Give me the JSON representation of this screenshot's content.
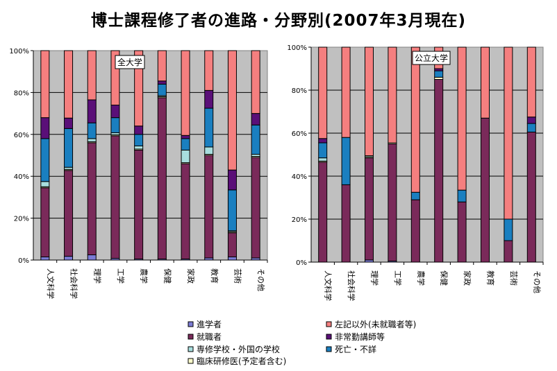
{
  "title": "博士課程修了者の進路・分野別(2007年3月現在)",
  "legend": [
    {
      "name": "進学者",
      "color": "#7b7bd4"
    },
    {
      "name": "左記以外(未就職者等)",
      "color": "#f57f7f"
    },
    {
      "name": "就職者",
      "color": "#7a2a5a"
    },
    {
      "name": "非常勤講師等",
      "color": "#5a0f78"
    },
    {
      "name": "専修学校・外国の学校",
      "color": "#a8dede"
    },
    {
      "name": "死亡・不詳",
      "color": "#1a7fc0"
    },
    {
      "name": "臨床研修医(予定者含む)",
      "color": "#ffffcc"
    }
  ],
  "chart_data": [
    {
      "type": "bar",
      "stacked": true,
      "title": "全大学",
      "categories": [
        "人文科学",
        "社会科学",
        "理学",
        "工学",
        "農学",
        "保健",
        "家政",
        "教育",
        "芸術",
        "その他"
      ],
      "ylim": [
        0,
        100
      ],
      "yticks": [
        "0%",
        "20%",
        "40%",
        "60%",
        "80%",
        "100%"
      ],
      "series": [
        {
          "name": "進学者",
          "values": [
            1.5,
            1.8,
            2.5,
            0.8,
            0.5,
            0.5,
            0.5,
            1.0,
            1.5,
            1.0
          ]
        },
        {
          "name": "就職者",
          "values": [
            33,
            41,
            53.5,
            58.5,
            52,
            77,
            45.5,
            49,
            11.5,
            48
          ]
        },
        {
          "name": "臨床研修医(予定者含む)",
          "values": [
            0.5,
            0.5,
            0.5,
            0.5,
            0.5,
            0.5,
            0.5,
            0.5,
            0.5,
            0.5
          ]
        },
        {
          "name": "専修学校・外国の学校",
          "values": [
            2.5,
            1.0,
            1.5,
            1.0,
            1.5,
            0.5,
            6.0,
            3.5,
            0.5,
            1.0
          ]
        },
        {
          "name": "死亡・不詳",
          "values": [
            20.5,
            18.5,
            7.5,
            7.2,
            5.5,
            5.5,
            5.5,
            18.5,
            19.5,
            14
          ]
        },
        {
          "name": "非常勤講師等",
          "values": [
            10,
            5,
            11,
            6,
            4,
            1.5,
            1.5,
            8.5,
            9.5,
            5.5
          ]
        },
        {
          "name": "左記以外(未就職者等)",
          "values": [
            32,
            32.2,
            23.5,
            26,
            36,
            14.5,
            40.5,
            19,
            57,
            30
          ]
        }
      ]
    },
    {
      "type": "bar",
      "stacked": true,
      "title": "公立大学",
      "categories": [
        "人文科学",
        "社会科学",
        "理学",
        "工学",
        "農学",
        "保健",
        "家政",
        "教育",
        "芸術",
        "その他"
      ],
      "ylim": [
        0,
        100
      ],
      "yticks": [
        "0%",
        "20%",
        "40%",
        "60%",
        "80%",
        "100%"
      ],
      "series": [
        {
          "name": "進学者",
          "values": [
            0,
            0,
            1.0,
            0.5,
            0,
            0,
            0,
            0,
            0,
            0
          ]
        },
        {
          "name": "就職者",
          "values": [
            46.5,
            36,
            47.5,
            54.5,
            29,
            85,
            28,
            67,
            10,
            60.5
          ]
        },
        {
          "name": "臨床研修医(予定者含む)",
          "values": [
            0.5,
            0,
            0.5,
            0.5,
            0,
            1.0,
            0,
            0,
            0,
            0
          ]
        },
        {
          "name": "専修学校・外国の学校",
          "values": [
            1.5,
            0,
            0.5,
            0,
            0,
            0,
            0,
            0,
            0,
            0
          ]
        },
        {
          "name": "死亡・不詳",
          "values": [
            7,
            22,
            0,
            0,
            3.5,
            3,
            5.5,
            0,
            10,
            4
          ]
        },
        {
          "name": "非常勤講師等",
          "values": [
            2,
            0,
            0,
            0,
            0,
            1.0,
            0,
            0,
            0,
            3
          ]
        },
        {
          "name": "左記以外(未就職者等)",
          "values": [
            42.5,
            42,
            50.5,
            44.5,
            67.5,
            10,
            66.5,
            33,
            80,
            32.5
          ]
        }
      ]
    }
  ]
}
